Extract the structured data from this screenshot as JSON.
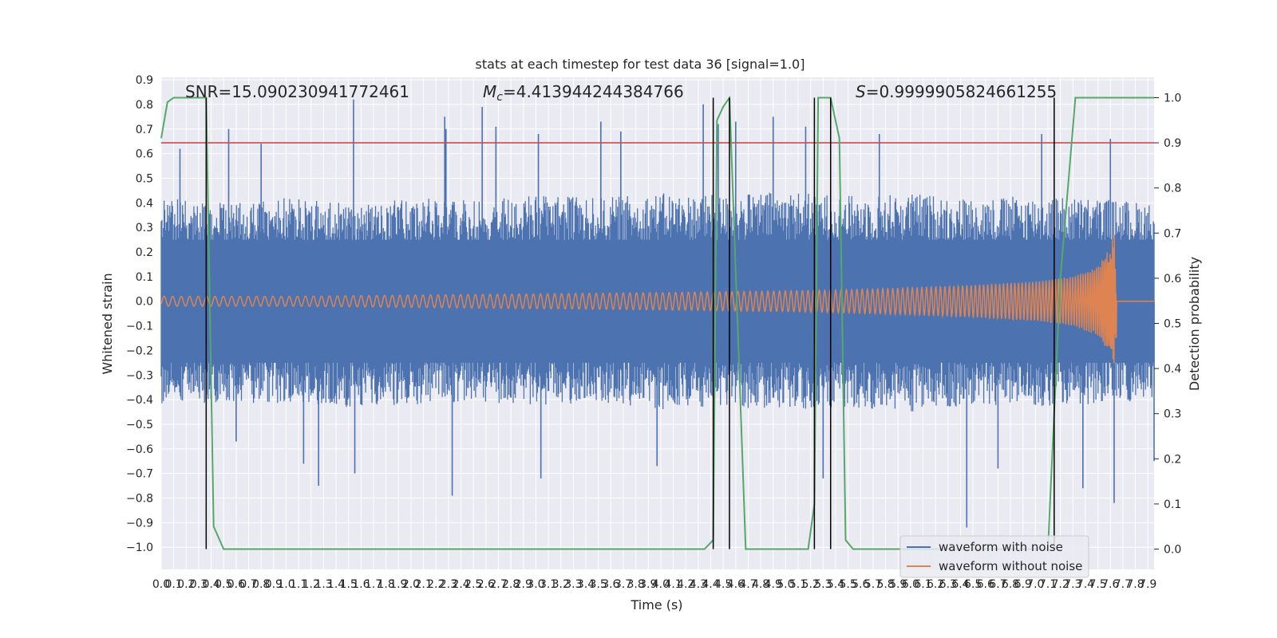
{
  "chart_data": {
    "type": "line",
    "title": "stats at each timestep for test data 36 [signal=1.0]",
    "xlabel": "Time (s)",
    "ylabel": "Whitened strain",
    "y2label": "Detection probability",
    "xlim": [
      0.0,
      7.95
    ],
    "ylim": [
      -1.09,
      0.91
    ],
    "y2lim": [
      -0.045,
      1.045
    ],
    "x_ticks": [
      0.0,
      0.1,
      0.2,
      0.3,
      0.4,
      0.5,
      0.6,
      0.7,
      0.8,
      0.9,
      1.0,
      1.1,
      1.2,
      1.3,
      1.4,
      1.5,
      1.6,
      1.7,
      1.8,
      1.9,
      2.0,
      2.1,
      2.2,
      2.3,
      2.4,
      2.5,
      2.6,
      2.7,
      2.8,
      2.9,
      3.0,
      3.1,
      3.2,
      3.3,
      3.4,
      3.5,
      3.6,
      3.7,
      3.8,
      3.9,
      4.0,
      4.1,
      4.2,
      4.3,
      4.4,
      4.5,
      4.6,
      4.7,
      4.8,
      4.9,
      5.0,
      5.1,
      5.2,
      5.3,
      5.4,
      5.5,
      5.6,
      5.7,
      5.8,
      5.9,
      6.0,
      6.1,
      6.2,
      6.3,
      6.4,
      6.5,
      6.6,
      6.7,
      6.8,
      6.9,
      7.0,
      7.1,
      7.2,
      7.3,
      7.4,
      7.5,
      7.6,
      7.7,
      7.8,
      7.9
    ],
    "y_ticks": [
      0.9,
      0.8,
      0.7,
      0.6,
      0.5,
      0.4,
      0.3,
      0.2,
      0.1,
      0.0,
      -0.1,
      -0.2,
      -0.3,
      -0.4,
      -0.5,
      -0.6,
      -0.7,
      -0.8,
      -0.9,
      -1.0
    ],
    "y2_ticks": [
      1.0,
      0.9,
      0.8,
      0.7,
      0.6,
      0.5,
      0.4,
      0.3,
      0.2,
      0.1,
      0.0
    ],
    "threshold": 0.9,
    "annotations": {
      "snr": "SNR=15.090230941772461",
      "mc_prefix": "M",
      "mc_sub": "c",
      "mc_value": "=4.413944244384766",
      "s_prefix": "S",
      "s_value": "=0.9999905824661255"
    },
    "legend": [
      "waveform with noise",
      "waveform without noise"
    ],
    "series_noise": {
      "name": "waveform with noise",
      "color": "#4c72b0",
      "envelope_x": [
        0.0,
        0.5,
        1.0,
        1.5,
        2.0,
        2.5,
        3.0,
        3.5,
        4.0,
        4.5,
        5.0,
        5.5,
        6.0,
        6.5,
        7.0,
        7.5,
        7.95
      ],
      "envelope_upper": [
        0.42,
        0.4,
        0.42,
        0.4,
        0.42,
        0.41,
        0.43,
        0.42,
        0.44,
        0.43,
        0.45,
        0.43,
        0.44,
        0.42,
        0.43,
        0.42,
        0.4
      ],
      "envelope_lower": [
        -0.42,
        -0.41,
        -0.42,
        -0.43,
        -0.42,
        -0.41,
        -0.43,
        -0.42,
        -0.44,
        -0.43,
        -0.44,
        -0.43,
        -0.45,
        -0.42,
        -0.43,
        -0.42,
        -0.4
      ],
      "peaks": [
        [
          0.15,
          0.62
        ],
        [
          0.54,
          0.7
        ],
        [
          0.8,
          0.64
        ],
        [
          1.54,
          0.82
        ],
        [
          2.27,
          0.75
        ],
        [
          2.28,
          0.7
        ],
        [
          2.57,
          0.79
        ],
        [
          2.68,
          0.71
        ],
        [
          3.02,
          0.68
        ],
        [
          3.52,
          0.73
        ],
        [
          3.68,
          0.69
        ],
        [
          4.34,
          0.8
        ],
        [
          4.46,
          0.72
        ],
        [
          4.6,
          0.73
        ],
        [
          4.9,
          0.75
        ],
        [
          5.16,
          0.71
        ],
        [
          5.75,
          0.68
        ],
        [
          7.05,
          0.68
        ],
        [
          7.6,
          0.66
        ],
        [
          0.6,
          -0.57
        ],
        [
          1.14,
          -0.66
        ],
        [
          1.26,
          -0.75
        ],
        [
          1.55,
          -0.7
        ],
        [
          2.33,
          -0.79
        ],
        [
          3.04,
          -0.72
        ],
        [
          3.97,
          -0.67
        ],
        [
          5.3,
          -0.72
        ],
        [
          6.45,
          -0.92
        ],
        [
          6.7,
          -0.68
        ],
        [
          7.38,
          -0.76
        ],
        [
          7.63,
          -0.82
        ],
        [
          7.95,
          -0.65
        ]
      ]
    },
    "series_clean": {
      "name": "waveform without noise",
      "color": "#dd8452",
      "amplitude_x": [
        0.0,
        1.0,
        2.0,
        3.0,
        4.0,
        5.0,
        5.5,
        6.0,
        6.5,
        7.0,
        7.3,
        7.5,
        7.6,
        7.65,
        7.67
      ],
      "amplitude_y": [
        0.02,
        0.02,
        0.025,
        0.03,
        0.035,
        0.042,
        0.047,
        0.055,
        0.065,
        0.08,
        0.1,
        0.14,
        0.22,
        0.33,
        0.0
      ]
    },
    "series_probability": {
      "name": "detection probability",
      "color": "#55a868",
      "x": [
        0.0,
        0.05,
        0.1,
        0.36,
        0.42,
        0.5,
        1.5,
        2.5,
        3.5,
        4.35,
        4.42,
        4.45,
        4.5,
        4.55,
        4.68,
        4.78,
        5.18,
        5.23,
        5.26,
        5.36,
        5.43,
        5.48,
        5.54,
        5.6,
        6.0,
        7.1,
        7.2,
        7.32,
        7.95
      ],
      "y": [
        0.91,
        0.99,
        1.0,
        1.0,
        0.05,
        0.0,
        0.0,
        0.0,
        0.0,
        0.0,
        0.02,
        0.95,
        0.98,
        1.0,
        0.0,
        0.0,
        0.0,
        0.1,
        1.0,
        1.0,
        0.91,
        0.02,
        0.0,
        0.0,
        0.0,
        0.0,
        0.6,
        1.0,
        1.0
      ]
    },
    "detections": [
      0.36,
      4.42,
      4.55,
      5.23,
      5.36,
      7.15
    ]
  }
}
